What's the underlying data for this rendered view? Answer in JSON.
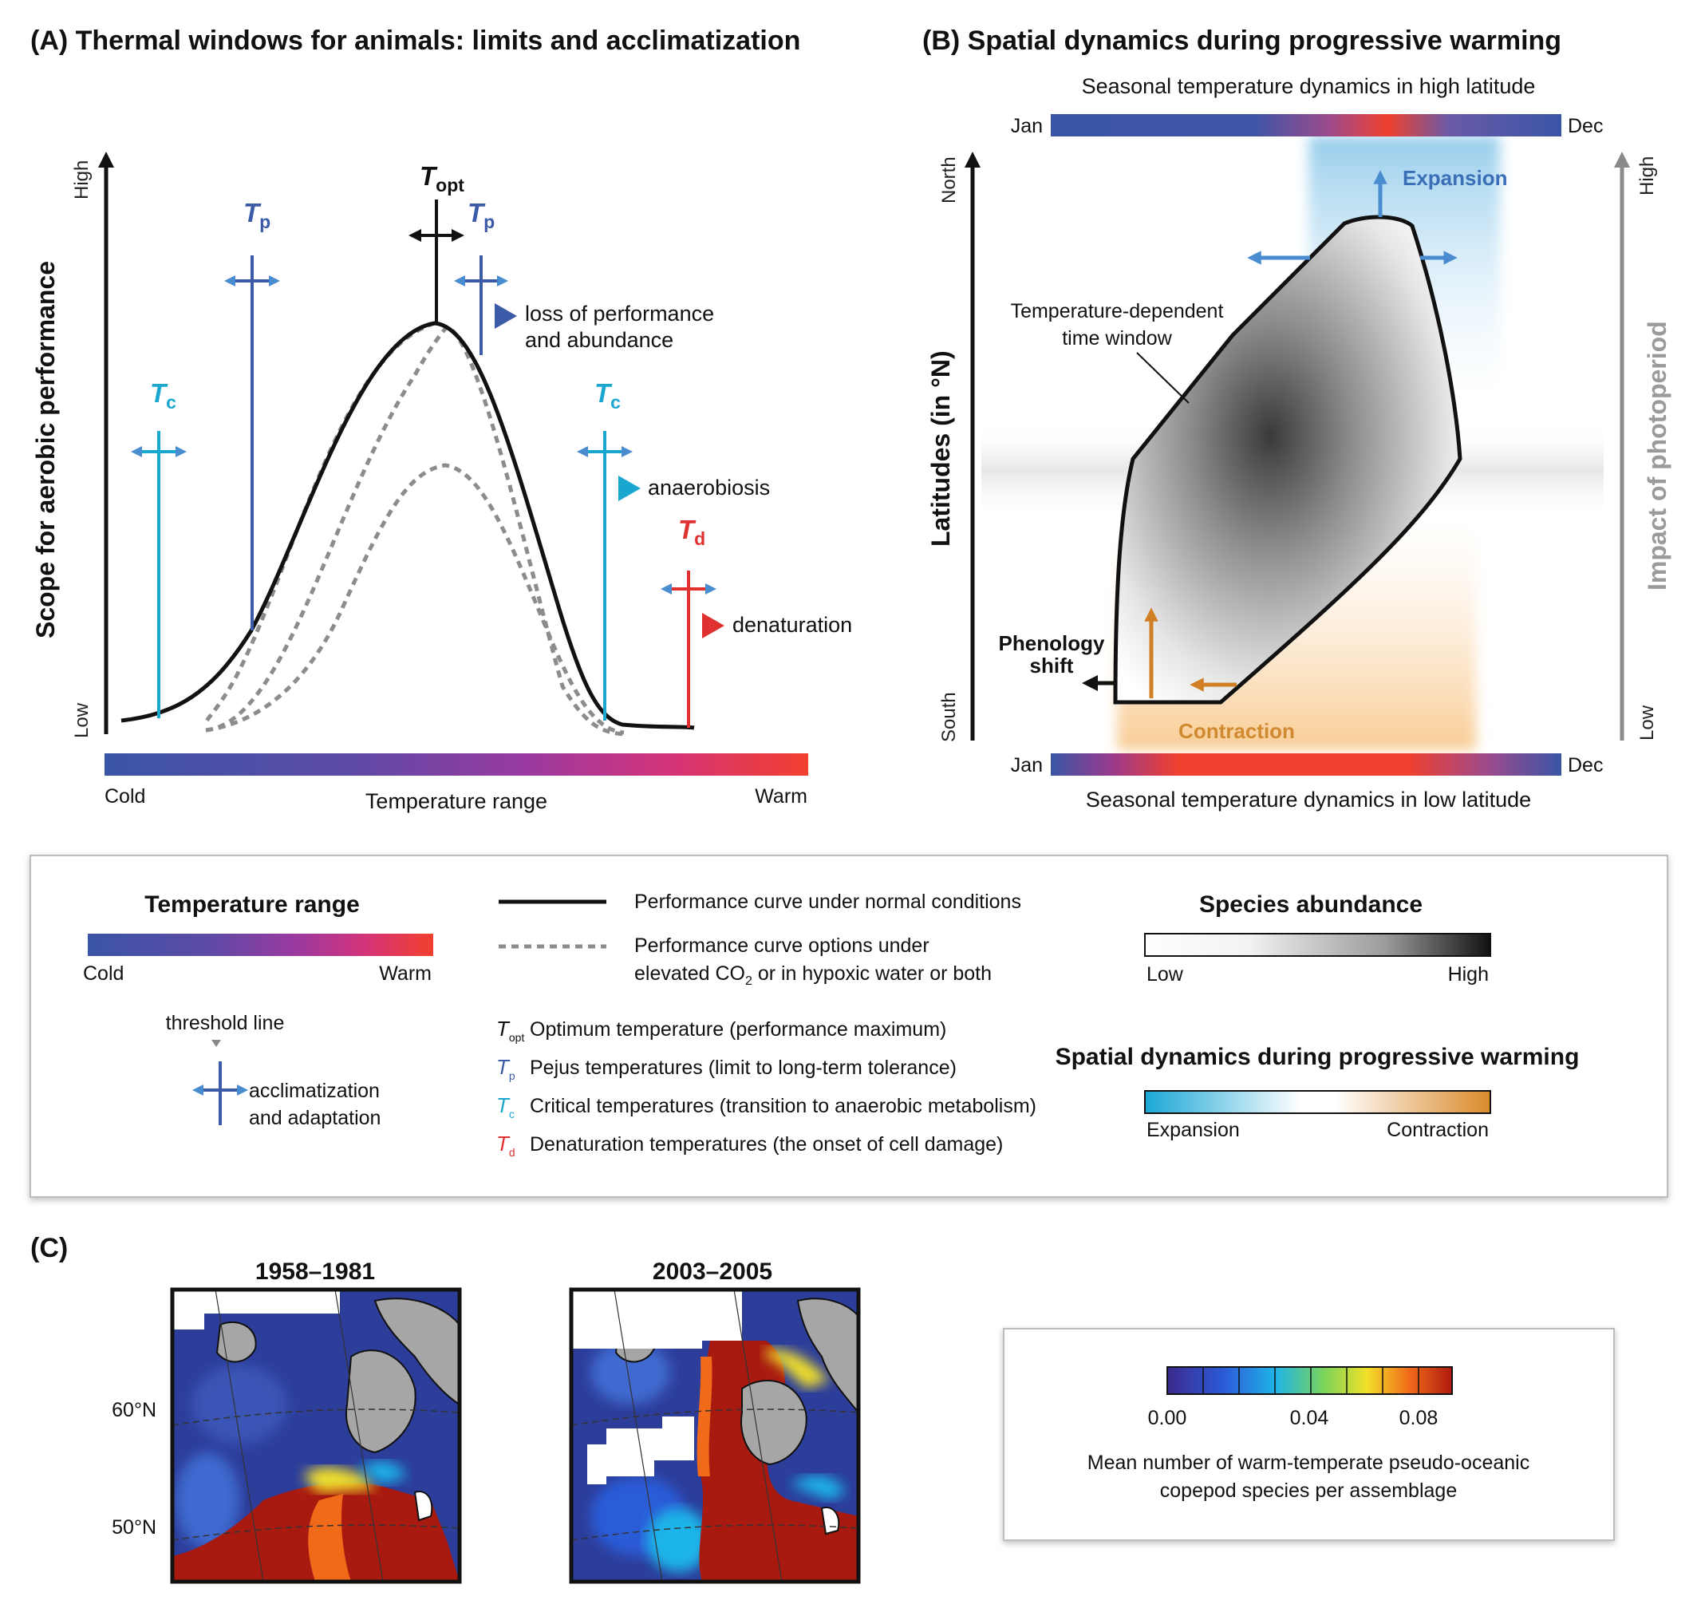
{
  "panel_a": {
    "title": "(A) Thermal windows for animals: limits and acclimatization",
    "y_axis": {
      "label": "Scope for aerobic performance",
      "high": "High",
      "low": "Low"
    },
    "x_axis": {
      "label": "Temperature range",
      "cold": "Cold",
      "warm": "Warm"
    },
    "t_symbol": "T",
    "t_opt_sub": "opt",
    "t_p_sub": "p",
    "t_c_sub": "c",
    "t_d_sub": "d",
    "annotations": {
      "loss_1": "loss of performance",
      "loss_2": "and abundance",
      "anaerobiosis": "anaerobiosis",
      "denaturation": "denaturation"
    },
    "colors": {
      "t_p": "#3b5aa8",
      "t_c": "#1aa7cf",
      "t_d": "#e03030",
      "t_opt": "#111111"
    }
  },
  "panel_b": {
    "title": "(B) Spatial dynamics during progressive warming",
    "top_label": "Seasonal temperature dynamics in high latitude",
    "bottom_label": "Seasonal temperature dynamics in low latitude",
    "jan": "Jan",
    "dec": "Dec",
    "y_axis": {
      "label": "Latitudes (in °N)",
      "north": "North",
      "south": "South"
    },
    "right_axis": {
      "label": "Impact of photoperiod",
      "high": "High",
      "low": "Low"
    },
    "window_label_1": "Temperature-dependent",
    "window_label_2": "time window",
    "expansion": "Expansion",
    "contraction": "Contraction",
    "phenology_1": "Phenology",
    "phenology_2": "shift"
  },
  "legend": {
    "temp_range_title": "Temperature range",
    "cold": "Cold",
    "warm": "Warm",
    "threshold_line": "threshold line",
    "acclim_1": "acclimatization",
    "acclim_2": "and adaptation",
    "solid_curve": "Performance curve under normal conditions",
    "dashed_curve_1": "Performance curve options under",
    "dashed_curve_2a": "elevated CO",
    "dashed_curve_2sub": "2",
    "dashed_curve_2b": " or in hypoxic water or both",
    "t_letter": "T",
    "topt_sub": "opt",
    "tp_sub": "p",
    "tc_sub": "c",
    "td_sub": "d",
    "topt_desc": "Optimum temperature (performance maximum)",
    "tp_desc": "Pejus temperatures (limit to long-term tolerance)",
    "tc_desc": "Critical temperatures (transition to anaerobic metabolism)",
    "td_desc": "Denaturation temperatures (the onset of cell damage)",
    "abundance_title": "Species abundance",
    "abundance_low": "Low",
    "abundance_high": "High",
    "spatial_title": "Spatial dynamics during progressive warming",
    "expansion": "Expansion",
    "contraction": "Contraction"
  },
  "panel_c": {
    "label": "(C)",
    "map1_title": "1958–1981",
    "map2_title": "2003–2005",
    "lat60": "60°N",
    "lat50": "50°N",
    "colorbar_ticks": [
      "0.00",
      "0.04",
      "0.08"
    ],
    "caption_1": "Mean number of warm-temperate pseudo-oceanic",
    "caption_2": "copepod species per assemblage"
  }
}
